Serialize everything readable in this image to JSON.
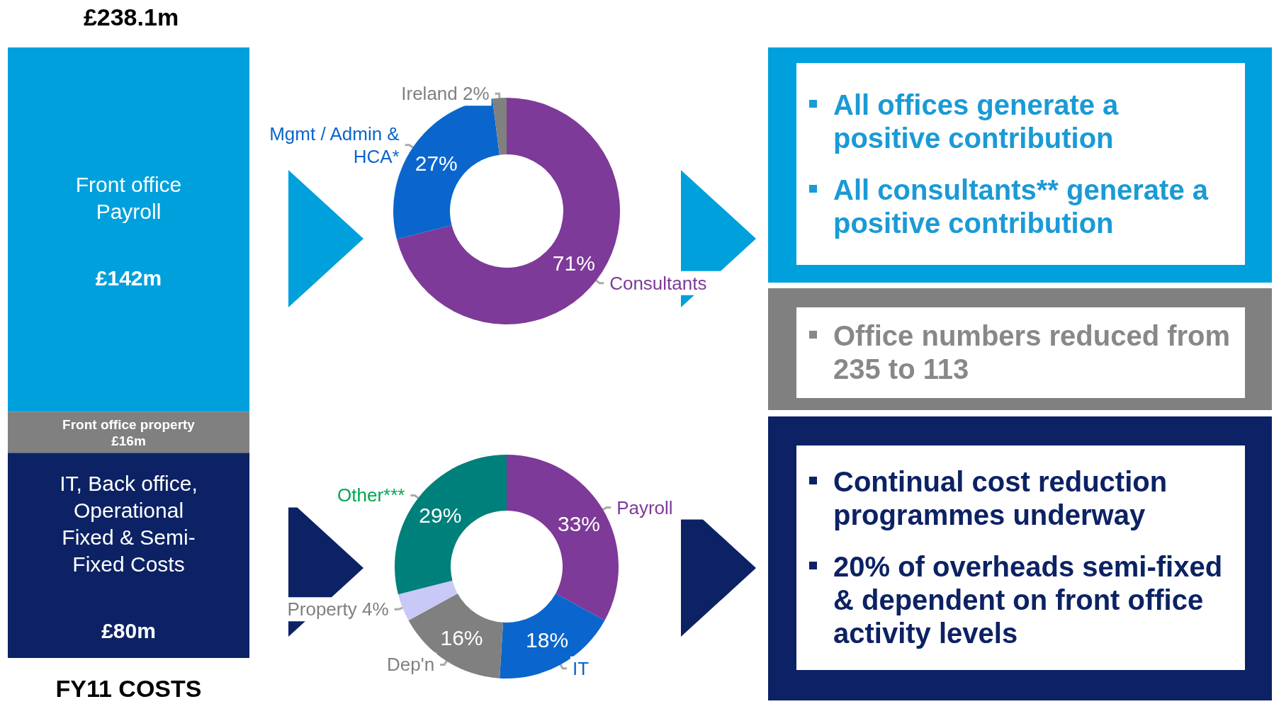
{
  "chart_data": [
    {
      "type": "bar",
      "stacked": true,
      "title": "£238.1m",
      "xlabel": "FY11 COSTS",
      "categories": [
        null
      ],
      "legend": false,
      "grid": false,
      "series": [
        {
          "name": "IT, Back office, Operational Fixed & Semi-Fixed Costs",
          "color": "#0c2264",
          "values": [
            80
          ],
          "value_labels": [
            "£80m"
          ]
        },
        {
          "name": "Front office property",
          "color": "#808080",
          "values": [
            16
          ],
          "value_labels": [
            "£16m"
          ]
        },
        {
          "name": "Front office Payroll",
          "color": "#00a0dc",
          "values": [
            142
          ],
          "value_labels": [
            "£142m"
          ]
        }
      ]
    },
    {
      "type": "donut",
      "categories": [
        "Consultants",
        "Mgmt / Admin & HCA*",
        "Ireland"
      ],
      "values": [
        71,
        27,
        2
      ],
      "value_labels": [
        "71%",
        "27%",
        "2%"
      ],
      "colors": [
        "#7d3a98",
        "#0a66cc",
        "#808080"
      ],
      "legend": false
    },
    {
      "type": "donut",
      "categories": [
        "Payroll",
        "IT",
        "Dep'n",
        "Property",
        "Other***"
      ],
      "values": [
        33,
        18,
        16,
        4,
        29
      ],
      "value_labels": [
        "33%",
        "18%",
        "16%",
        "4%",
        "29%"
      ],
      "colors": [
        "#7d3a98",
        "#0a66cc",
        "#808080",
        "#c9c9f7",
        "#00807a"
      ],
      "legend": false
    },
    {
      "type": "other",
      "annotations": [
        "All offices generate a positive contribution",
        "All consultants** generate a positive contribution"
      ]
    },
    {
      "type": "other",
      "annotations": [
        "Office numbers reduced from 235 to 113"
      ]
    },
    {
      "type": "other",
      "annotations": [
        "Continual cost reduction programmes underway",
        "20% of overheads semi-fixed & dependent on front office activity levels"
      ]
    }
  ]
}
